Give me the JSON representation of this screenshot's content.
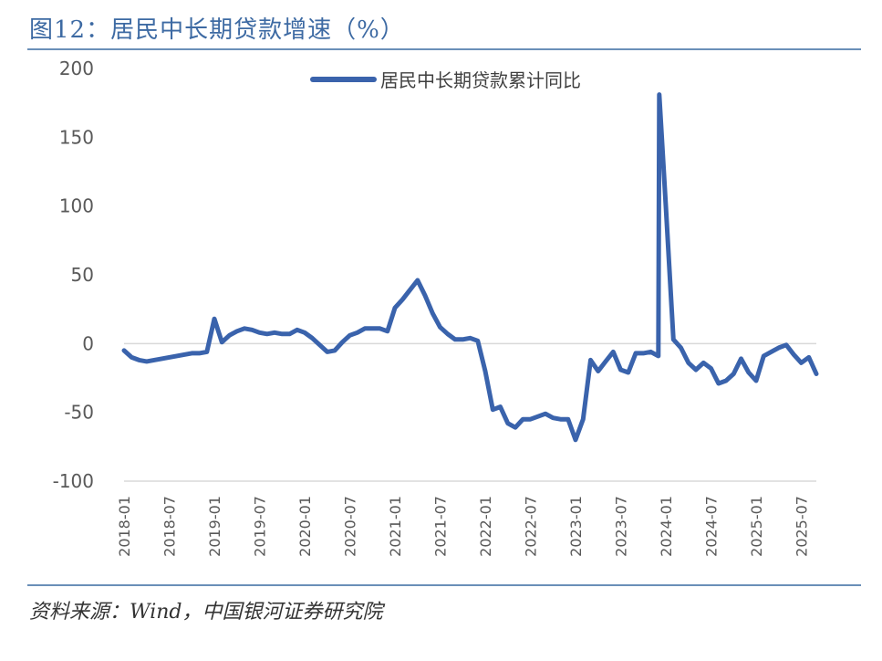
{
  "header": {
    "title": "图12：居民中长期贷款增速（%）"
  },
  "footer": {
    "source": "资料来源：Wind，中国银河证券研究院"
  },
  "chart_data": {
    "type": "line",
    "ylim": [
      -100,
      200
    ],
    "yticks": [
      -100,
      -50,
      0,
      50,
      100,
      150,
      200
    ],
    "xtick_labels": [
      "2018-01",
      "2018-07",
      "2019-01",
      "2019-07",
      "2020-01",
      "2020-07",
      "2021-01",
      "2021-07",
      "2022-01",
      "2022-07",
      "2023-01",
      "2023-07",
      "2024-01",
      "2024-07",
      "2025-01",
      "2025-07"
    ],
    "legend_position": "top-center",
    "grid": false,
    "series": [
      {
        "name": "居民中长期贷款累计同比",
        "color": "#3a63ac",
        "points": [
          [
            "2018-01",
            -5
          ],
          [
            "2018-02",
            -10
          ],
          [
            "2018-03",
            -12
          ],
          [
            "2018-04",
            -13
          ],
          [
            "2018-05",
            -12
          ],
          [
            "2018-06",
            -11
          ],
          [
            "2018-07",
            -10
          ],
          [
            "2018-08",
            -9
          ],
          [
            "2018-09",
            -8
          ],
          [
            "2018-10",
            -7
          ],
          [
            "2018-11",
            -7
          ],
          [
            "2018-12",
            -6
          ],
          [
            "2019-01",
            18
          ],
          [
            "2019-02",
            1
          ],
          [
            "2019-03",
            6
          ],
          [
            "2019-04",
            9
          ],
          [
            "2019-05",
            11
          ],
          [
            "2019-06",
            10
          ],
          [
            "2019-07",
            8
          ],
          [
            "2019-08",
            7
          ],
          [
            "2019-09",
            8
          ],
          [
            "2019-10",
            7
          ],
          [
            "2019-11",
            7
          ],
          [
            "2019-12",
            10
          ],
          [
            "2020-01",
            8
          ],
          [
            "2020-02",
            4
          ],
          [
            "2020-03",
            -1
          ],
          [
            "2020-04",
            -6
          ],
          [
            "2020-05",
            -5
          ],
          [
            "2020-06",
            1
          ],
          [
            "2020-07",
            6
          ],
          [
            "2020-08",
            8
          ],
          [
            "2020-09",
            11
          ],
          [
            "2020-10",
            11
          ],
          [
            "2020-11",
            11
          ],
          [
            "2020-12",
            9
          ],
          [
            "2021-01",
            26
          ],
          [
            "2021-02",
            32
          ],
          [
            "2021-03",
            39
          ],
          [
            "2021-04",
            46
          ],
          [
            "2021-05",
            35
          ],
          [
            "2021-06",
            22
          ],
          [
            "2021-07",
            12
          ],
          [
            "2021-08",
            7
          ],
          [
            "2021-09",
            3
          ],
          [
            "2021-10",
            3
          ],
          [
            "2021-11",
            4
          ],
          [
            "2021-12",
            2
          ],
          [
            "2022-01",
            -20
          ],
          [
            "2022-02",
            -48
          ],
          [
            "2022-03",
            -46
          ],
          [
            "2022-04",
            -58
          ],
          [
            "2022-05",
            -61
          ],
          [
            "2022-06",
            -55
          ],
          [
            "2022-07",
            -55
          ],
          [
            "2022-08",
            -53
          ],
          [
            "2022-09",
            -51
          ],
          [
            "2022-10",
            -54
          ],
          [
            "2022-11",
            -55
          ],
          [
            "2022-12",
            -55
          ],
          [
            "2023-01",
            -70
          ],
          [
            "2023-02",
            -55
          ],
          [
            "2023-03",
            -12
          ],
          [
            "2023-04",
            -20
          ],
          [
            "2023-05",
            -13
          ],
          [
            "2023-06",
            -6
          ],
          [
            "2023-07",
            -19
          ],
          [
            "2023-08",
            -21
          ],
          [
            "2023-09",
            -7
          ],
          [
            "2023-10",
            -7
          ],
          [
            "2023-11",
            -6
          ],
          [
            "2023-12",
            -9
          ],
          [
            "2023-12",
            181
          ],
          [
            "2024-01",
            100
          ],
          [
            "2024-02",
            3
          ],
          [
            "2024-03",
            -3
          ],
          [
            "2024-04",
            -14
          ],
          [
            "2024-05",
            -19
          ],
          [
            "2024-06",
            -14
          ],
          [
            "2024-07",
            -18
          ],
          [
            "2024-08",
            -29
          ],
          [
            "2024-09",
            -27
          ],
          [
            "2024-10",
            -22
          ],
          [
            "2024-11",
            -11
          ],
          [
            "2024-12",
            -21
          ],
          [
            "2025-01",
            -27
          ],
          [
            "2025-02",
            -9
          ],
          [
            "2025-03",
            -6
          ],
          [
            "2025-04",
            -3
          ],
          [
            "2025-05",
            -1
          ],
          [
            "2025-06",
            -8
          ],
          [
            "2025-07",
            -14
          ],
          [
            "2025-08",
            -10
          ],
          [
            "2025-09",
            -22
          ]
        ]
      }
    ]
  }
}
